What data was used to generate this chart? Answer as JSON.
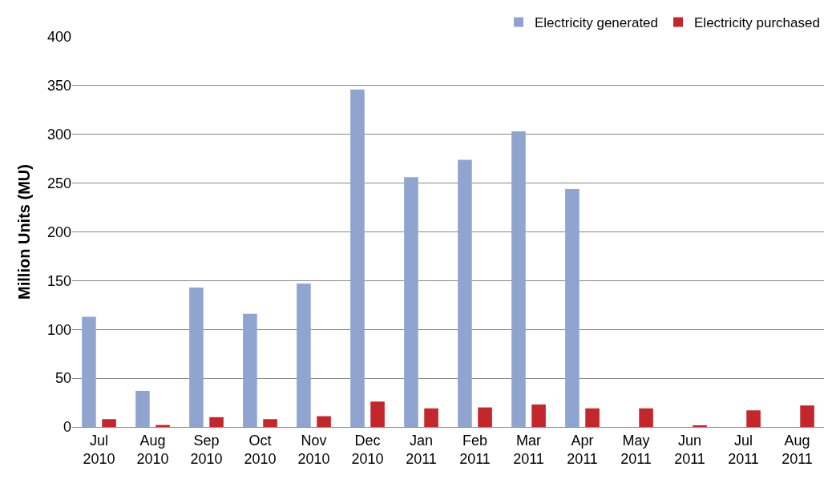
{
  "chart_data": {
    "type": "bar",
    "ylabel": "Million Units (MU)",
    "categories": [
      "Jul\n2010",
      "Aug\n2010",
      "Sep\n2010",
      "Oct\n2010",
      "Nov\n2010",
      "Dec\n2010",
      "Jan\n2011",
      "Feb\n2011",
      "Mar\n2011",
      "Apr\n2011",
      "May\n2011",
      "Jun\n2011",
      "Jul\n2011",
      "Aug\n2011"
    ],
    "series": [
      {
        "name": "Electricity generated",
        "color": "#8fa5cf",
        "values": [
          113,
          37,
          143,
          116,
          147,
          346,
          256,
          274,
          303,
          244,
          null,
          null,
          null,
          null
        ]
      },
      {
        "name": "Electricity purchased",
        "color": "#c3262b",
        "values": [
          8,
          2,
          10,
          8,
          11,
          26,
          19,
          20,
          23,
          19,
          19,
          1,
          17,
          22
        ]
      }
    ],
    "ylim": [
      0,
      400
    ],
    "yticks": [
      0,
      50,
      100,
      150,
      200,
      250,
      300,
      350,
      400
    ],
    "grid": "y",
    "legend": "top right"
  }
}
